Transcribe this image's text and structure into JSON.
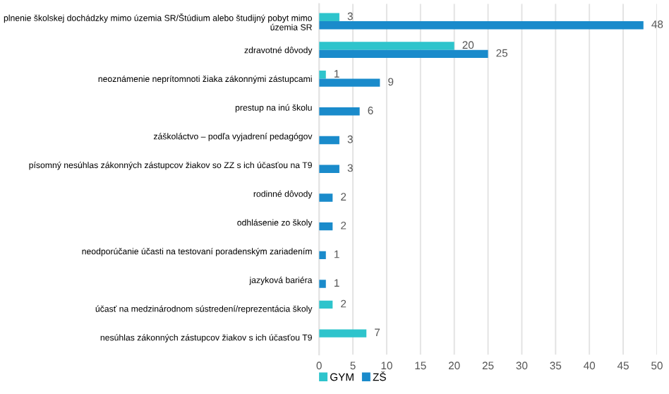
{
  "chart_data": {
    "type": "bar",
    "orientation": "horizontal",
    "categories": [
      "plnenie školskej dochádzky mimo územia SR/Štúdium alebo študijný pobyt mimo\núzemia SR",
      "zdravotné dôvody",
      "neoznámenie neprítomnoti žiaka zákonnými zástupcami",
      "prestup na inú školu",
      "záškoláctvo – podľa vyjadrení pedagógov",
      "písomný nesúhlas zákonných zástupcov žiakov so ZZ s ich účasťou na T9",
      "rodinné dôvody",
      "odhlásenie zo školy",
      "neodporúčanie účasti na testovaní poradenským zariadením",
      "jazyková bariéra",
      "účasť na medzinárodnom sústredení/reprezentácia školy",
      "nesúhlas zákonných zástupcov žiakov s ich účasťou T9"
    ],
    "series": [
      {
        "name": "GYM",
        "color": "#2ec4cc",
        "values": [
          3,
          20,
          1,
          null,
          null,
          null,
          null,
          null,
          null,
          null,
          2,
          7
        ]
      },
      {
        "name": "ZŠ",
        "color": "#1a8bcb",
        "values": [
          48,
          25,
          9,
          6,
          3,
          3,
          2,
          2,
          1,
          1,
          null,
          null
        ]
      }
    ],
    "xlim": [
      0,
      50
    ],
    "xticks": [
      0,
      5,
      10,
      15,
      20,
      25,
      30,
      35,
      40,
      45,
      50
    ],
    "grid": "x",
    "legend": "bottom left",
    "data_labels": true
  }
}
